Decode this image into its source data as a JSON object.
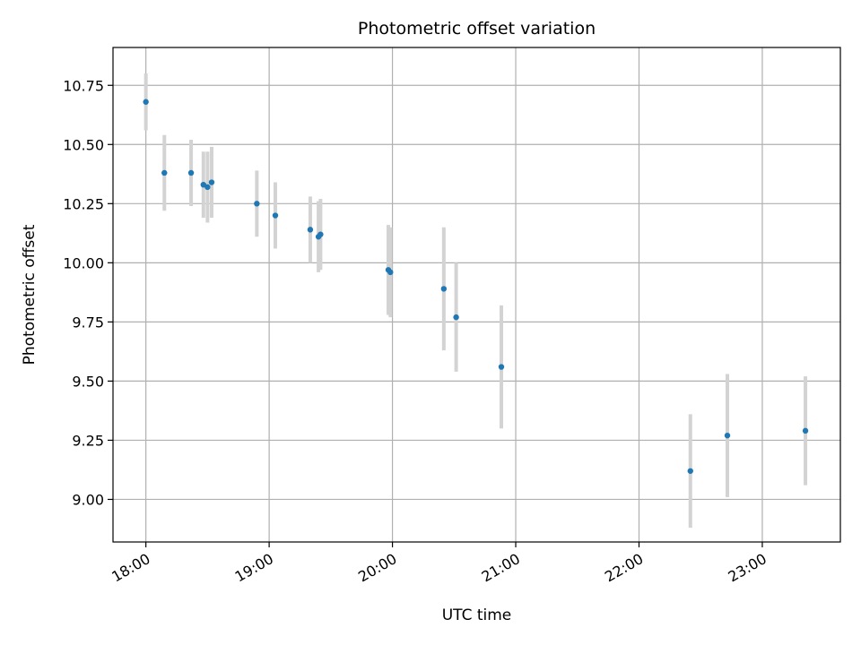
{
  "chart_data": {
    "type": "scatter",
    "title": "Photometric offset variation",
    "xlabel": "UTC time",
    "ylabel": "Photometric offset",
    "x_ticks": [
      "18:00",
      "19:00",
      "20:00",
      "21:00",
      "22:00",
      "23:00"
    ],
    "y_ticks": [
      "9.00",
      "9.25",
      "9.50",
      "9.75",
      "10.00",
      "10.25",
      "10.50",
      "10.75"
    ],
    "xlim": [
      "17:44",
      "23:38"
    ],
    "ylim": [
      8.82,
      10.91
    ],
    "grid": true,
    "colors": {
      "point": "#1f77b4",
      "errorbar": "#d3d3d3",
      "grid": "#b0b0b0"
    },
    "points": [
      {
        "x": "18:00",
        "y": 10.68,
        "err": 0.12
      },
      {
        "x": "18:09",
        "y": 10.38,
        "err": 0.16
      },
      {
        "x": "18:22",
        "y": 10.38,
        "err": 0.14
      },
      {
        "x": "18:28",
        "y": 10.33,
        "err": 0.14
      },
      {
        "x": "18:30",
        "y": 10.32,
        "err": 0.15
      },
      {
        "x": "18:32",
        "y": 10.34,
        "err": 0.15
      },
      {
        "x": "18:54",
        "y": 10.25,
        "err": 0.14
      },
      {
        "x": "19:03",
        "y": 10.2,
        "err": 0.14
      },
      {
        "x": "19:20",
        "y": 10.14,
        "err": 0.14
      },
      {
        "x": "19:24",
        "y": 10.11,
        "err": 0.15
      },
      {
        "x": "19:25",
        "y": 10.12,
        "err": 0.15
      },
      {
        "x": "19:58",
        "y": 9.97,
        "err": 0.19
      },
      {
        "x": "19:59",
        "y": 9.96,
        "err": 0.19
      },
      {
        "x": "20:25",
        "y": 9.89,
        "err": 0.26
      },
      {
        "x": "20:31",
        "y": 9.77,
        "err": 0.23
      },
      {
        "x": "20:53",
        "y": 9.56,
        "err": 0.26
      },
      {
        "x": "22:25",
        "y": 9.12,
        "err": 0.24
      },
      {
        "x": "22:43",
        "y": 9.27,
        "err": 0.26
      },
      {
        "x": "23:21",
        "y": 9.29,
        "err": 0.23
      }
    ]
  }
}
